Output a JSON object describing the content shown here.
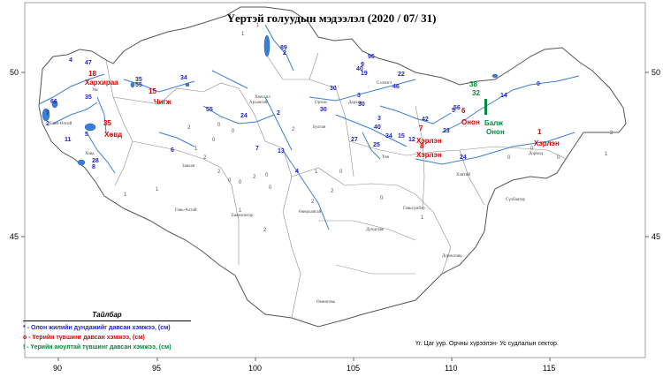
{
  "title": "Үертэй голуудын мэдээлэл (2020 / 07/ 31)",
  "axes": {
    "lon_ticks": [
      "90",
      "95",
      "100",
      "105",
      "110",
      "115"
    ],
    "lat_ticks": [
      "50",
      "45"
    ]
  },
  "legend": {
    "title": "Тайлбар",
    "items": [
      {
        "symbol": "*",
        "text": "- Олон жилийн дундажийг давсан хэмжээ, (см)",
        "color": "#1f1fcc"
      },
      {
        "symbol": "о",
        "text": "- Үерийн түвшинг давсан хэмжээ, (см)",
        "color": "#e00000"
      },
      {
        "symbol": "!",
        "text": "- Үерийн аюултай түвшинг давсан хэмжээ, (см)",
        "color": "#008a3a"
      }
    ]
  },
  "source": "Үг. Цаг уур. Орчны хүрээлэн- Ус судлалын сектор.",
  "aimag_labels": [
    "Увс",
    "Завхан",
    "Говь-Алтай",
    "Баян-Өлгий",
    "Ховд",
    "Архангай",
    "Сэлэнгэ",
    "Булган",
    "Төв",
    "Хэнтий",
    "Дорнод",
    "Сүхбаатар",
    "Дундговь",
    "Өмнөговь",
    "Говьсүмбэр",
    "Өвөрхангай",
    "Баянхонгор",
    "Хөвсгөл",
    "Орхон",
    "Дархан",
    "Дорноговь"
  ],
  "markers": {
    "blue": [
      "4",
      "47",
      "35",
      "66",
      "7",
      "2",
      "11",
      "5",
      "28",
      "8",
      "55",
      "35",
      "34",
      "6",
      "55",
      "24",
      "2",
      "7",
      "13",
      "89",
      "2",
      "30",
      "30",
      "4",
      "96",
      "9",
      "40",
      "19",
      "46",
      "3",
      "22",
      "30",
      "3",
      "27",
      "40",
      "25",
      "34",
      "15",
      "12",
      "42",
      "5",
      "56",
      "23",
      "24",
      "14",
      "0",
      "2",
      "2",
      "2",
      "1",
      "1",
      "1",
      "1",
      "1",
      "2",
      "2",
      "2",
      "0",
      "0",
      "0",
      "0",
      "0",
      "2",
      "2",
      "0",
      "1",
      "0",
      "2",
      "1",
      "1",
      "0",
      "0",
      "0",
      "2",
      "2",
      "1",
      "1",
      "0",
      "0"
    ],
    "red": [
      "18",
      "Хархираа",
      "35",
      "Хөвд",
      "15",
      "Чигж",
      "7",
      "Хэрлэн",
      "8",
      "Хэрлэн",
      "6",
      "Онон",
      "1",
      "Хэрлэн"
    ],
    "green": [
      "38",
      "32",
      "Балж",
      "Онон"
    ]
  }
}
